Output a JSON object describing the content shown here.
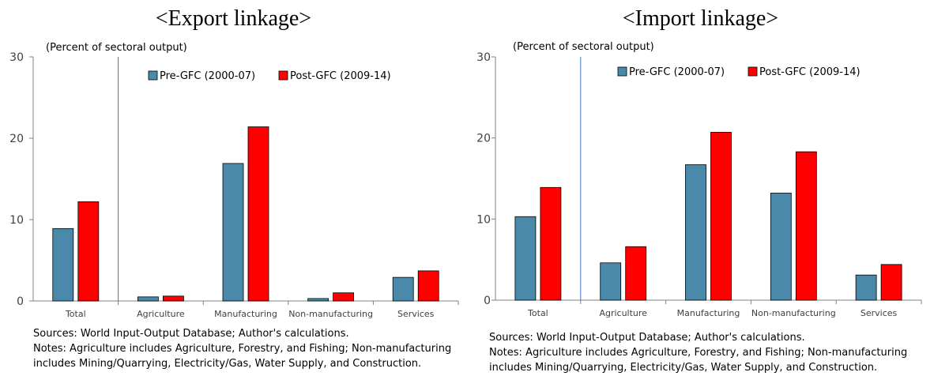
{
  "colors": {
    "pre": "#4a89aa",
    "post": "#ff0000",
    "divider": "#4472c4",
    "axis": "#808080"
  },
  "footer": {
    "sources": "Sources: World Input-Output Database; Author's calculations.",
    "notes_line1": "Notes: Agriculture includes Agriculture, Forestry, and Fishing; Non-manufacturing",
    "notes_line2": "includes Mining/Quarrying, Electricity/Gas, Water Supply, and Construction."
  },
  "chart_data": [
    {
      "type": "bar",
      "title": "<Export linkage>",
      "ylabel": "(Percent of sectoral output)",
      "ylim": [
        0,
        30
      ],
      "yticks": [
        "0",
        "10",
        "20",
        "30"
      ],
      "categories": [
        "Total",
        "Agriculture",
        "Manufacturing",
        "Non-manufacturing",
        "Services"
      ],
      "series": [
        {
          "name": "Pre-GFC (2000-07)",
          "values": [
            8.9,
            0.5,
            16.9,
            0.3,
            2.9
          ]
        },
        {
          "name": "Post-GFC (2009-14)",
          "values": [
            12.2,
            0.6,
            21.4,
            1.0,
            3.7
          ]
        }
      ],
      "legend": "top-center",
      "grid": false
    },
    {
      "type": "bar",
      "title": "<Import linkage>",
      "ylabel": "(Percent of sectoral output)",
      "ylim": [
        0,
        30
      ],
      "yticks": [
        "0",
        "10",
        "20",
        "30"
      ],
      "categories": [
        "Total",
        "Agriculture",
        "Manufacturing",
        "Non-manufacturing",
        "Services"
      ],
      "series": [
        {
          "name": "Pre-GFC (2000-07)",
          "values": [
            10.3,
            4.6,
            16.7,
            13.2,
            3.1
          ]
        },
        {
          "name": "Post-GFC (2009-14)",
          "values": [
            13.9,
            6.6,
            20.7,
            18.3,
            4.4
          ]
        }
      ],
      "legend": "top-center",
      "grid": false
    }
  ]
}
